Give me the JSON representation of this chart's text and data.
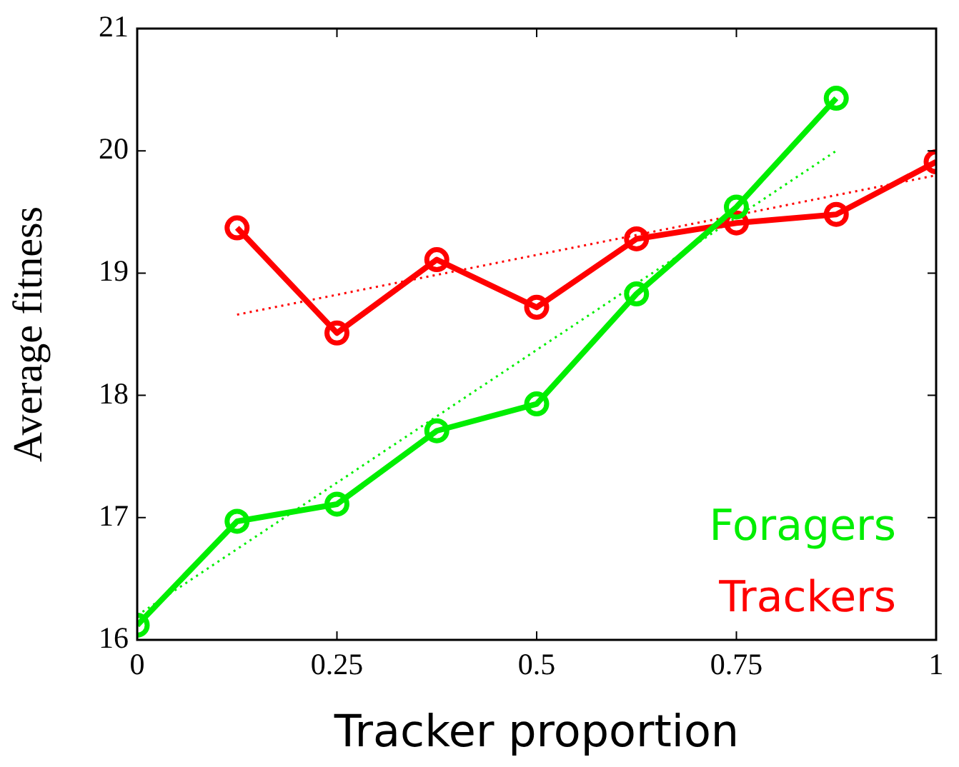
{
  "chart_data": {
    "type": "line",
    "xlabel": "Tracker proportion",
    "ylabel": "Average fitness",
    "x": [
      0,
      0.125,
      0.25,
      0.375,
      0.5,
      0.625,
      0.75,
      0.875
    ],
    "series": [
      {
        "name": "Foragers",
        "color": "#00ee00",
        "values": [
          16.12,
          16.97,
          17.11,
          17.71,
          17.93,
          18.83,
          19.54,
          20.43
        ]
      },
      {
        "name": "Trackers",
        "color": "#ff0000",
        "x": [
          0.125,
          0.25,
          0.375,
          0.5,
          0.625,
          0.75,
          0.875,
          1
        ],
        "values": [
          19.37,
          18.51,
          19.11,
          18.72,
          19.28,
          19.41,
          19.48,
          19.91
        ]
      },
      {
        "type": "line",
        "color": "#00ee00",
        "x": [
          0,
          0.875
        ],
        "values": [
          16.2,
          20.0
        ],
        "marker": "none",
        "line_style": "dotted"
      },
      {
        "type": "line",
        "color": "#ff0000",
        "x": [
          0.125,
          1
        ],
        "values": [
          18.66,
          19.8
        ],
        "marker": "none",
        "line_style": "dotted"
      }
    ],
    "xlim": [
      0,
      1
    ],
    "xticks": [
      0,
      0.25,
      0.5,
      0.75,
      1
    ],
    "ylim": [
      16,
      21
    ],
    "yticks": [
      16,
      17,
      18,
      19,
      20,
      21
    ],
    "grid": false,
    "legend": "bottom right",
    "marker": "circle",
    "line_style": "solid"
  }
}
